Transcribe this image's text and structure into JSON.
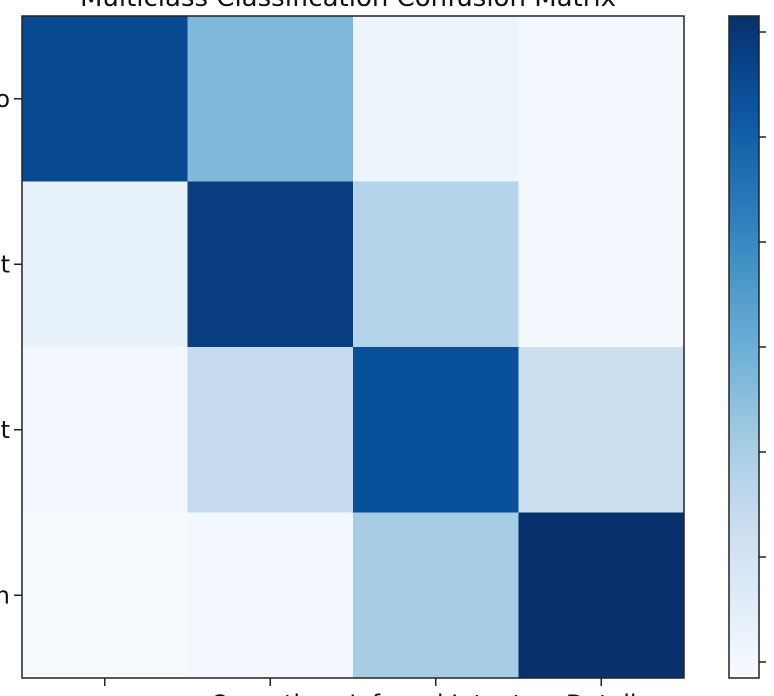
{
  "chart_data": {
    "type": "heatmap",
    "title": "Multiclass Classification Confusion Matrix",
    "x_tick_labels": [
      "",
      "Operation",
      "Inferred Intent",
      "Detail"
    ],
    "y_tick_labels": [
      "o",
      "t",
      "t",
      "n"
    ],
    "matrix": [
      [
        0.9,
        0.45,
        0.05,
        0.02
      ],
      [
        0.08,
        0.95,
        0.3,
        0.02
      ],
      [
        0.02,
        0.25,
        0.88,
        0.22
      ],
      [
        0.01,
        0.02,
        0.35,
        1.0
      ]
    ],
    "colormap": "Blues",
    "color_range": [
      0,
      1
    ],
    "grid": false,
    "colorbar": "right"
  },
  "colors": {
    "background": "#ffffff",
    "axes": "#222222",
    "cmap_low": "#f7fbff",
    "cmap_high": "#08306b"
  }
}
